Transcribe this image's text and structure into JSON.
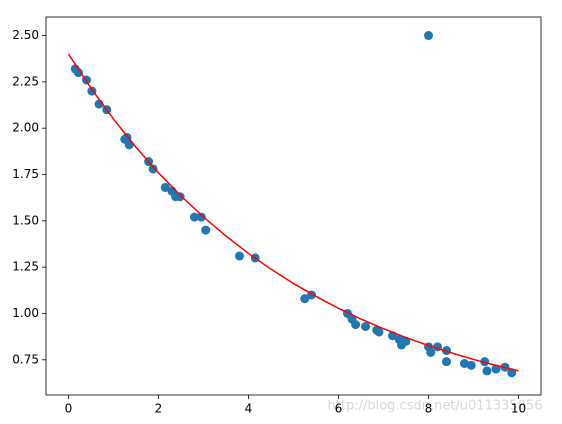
{
  "chart_data": {
    "type": "scatter",
    "series": [
      {
        "type": "scatter",
        "color": "#1f77b4",
        "x": [
          0.15,
          0.22,
          0.4,
          0.52,
          0.68,
          0.85,
          1.25,
          1.3,
          1.35,
          1.78,
          1.88,
          2.15,
          2.3,
          2.38,
          2.48,
          2.8,
          2.95,
          3.05,
          3.8,
          4.15,
          5.25,
          5.4,
          6.2,
          6.3,
          6.38,
          6.6,
          6.85,
          6.9,
          7.2,
          7.35,
          7.4,
          7.5,
          8.0,
          8.0,
          8.05,
          8.2,
          8.4,
          8.4,
          8.8,
          8.95,
          9.25,
          9.3,
          9.5,
          9.7,
          9.85
        ],
        "values": [
          2.32,
          2.3,
          2.26,
          2.2,
          2.13,
          2.1,
          1.94,
          1.95,
          1.91,
          1.82,
          1.78,
          1.68,
          1.66,
          1.63,
          1.63,
          1.52,
          1.52,
          1.45,
          1.31,
          1.3,
          1.08,
          1.1,
          1.0,
          0.97,
          0.94,
          0.93,
          0.91,
          0.9,
          0.88,
          0.86,
          0.83,
          0.85,
          2.5,
          0.82,
          0.79,
          0.82,
          0.8,
          0.74,
          0.73,
          0.72,
          0.74,
          0.69,
          0.7,
          0.71,
          0.68
        ]
      },
      {
        "type": "line",
        "color": "#ff0000",
        "x": [
          0,
          0.5,
          1,
          1.5,
          2,
          2.5,
          3,
          3.5,
          4,
          4.5,
          5,
          5.5,
          6,
          6.5,
          7,
          7.5,
          8,
          8.5,
          9,
          9.5,
          10
        ],
        "values": [
          2.4,
          2.216,
          2.049,
          1.897,
          1.759,
          1.634,
          1.521,
          1.418,
          1.324,
          1.239,
          1.162,
          1.092,
          1.028,
          0.97,
          0.918,
          0.87,
          0.827,
          0.788,
          0.752,
          0.72,
          0.69
        ]
      }
    ],
    "xlim": [
      -0.5,
      10.5
    ],
    "ylim": [
      0.56,
      2.6
    ],
    "xticks": [
      0,
      2,
      4,
      6,
      8,
      10
    ],
    "yticks": [
      {
        "value": 0.75,
        "label": "0.75"
      },
      {
        "value": 1,
        "label": "1.00"
      },
      {
        "value": 1.25,
        "label": "1.25"
      },
      {
        "value": 1.5,
        "label": "1.50"
      },
      {
        "value": 1.75,
        "label": "1.75"
      },
      {
        "value": 2,
        "label": "2.00"
      },
      {
        "value": 2.25,
        "label": "2.25"
      },
      {
        "value": 2.5,
        "label": "2.50"
      }
    ],
    "watermark": "http://blog.csdn.net/u011335056"
  }
}
